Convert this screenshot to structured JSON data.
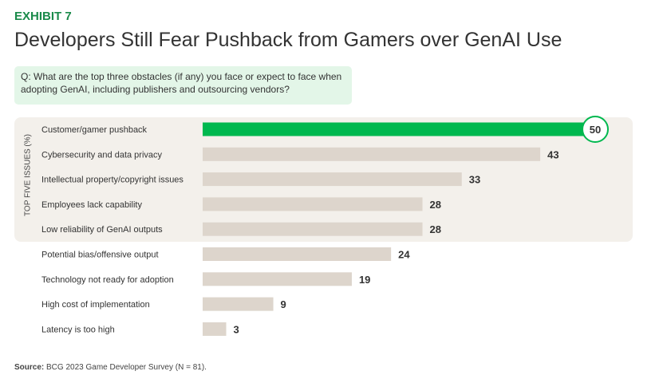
{
  "header": {
    "exhibit": "EXHIBIT 7",
    "title": "Developers Still Fear Pushback from Gamers over GenAI Use",
    "question": "Q: What are the top three obstacles (if any) you face or expect to face when adopting GenAI, including publishers and outsourcing vendors?"
  },
  "chart_data": {
    "type": "bar",
    "orientation": "horizontal",
    "ylabel": "TOP FIVE ISSUES (%)",
    "categories": [
      "Customer/gamer pushback",
      "Cybersecurity and data privacy",
      "Intellectual property/copyright issues",
      "Employees lack capability",
      "Low reliability of GenAI outputs",
      "Potential bias/offensive output",
      "Technology not ready for adoption",
      "High cost of implementation",
      "Latency is too high"
    ],
    "values": [
      50,
      43,
      33,
      28,
      28,
      24,
      19,
      9,
      3
    ],
    "highlight_count": 5,
    "colors": {
      "highlight": "#00b84f",
      "bar": "#ddd5cc"
    }
  },
  "footer": {
    "source_label": "Source:",
    "source_text": "BCG 2023 Game Developer Survey (N = 81)."
  }
}
